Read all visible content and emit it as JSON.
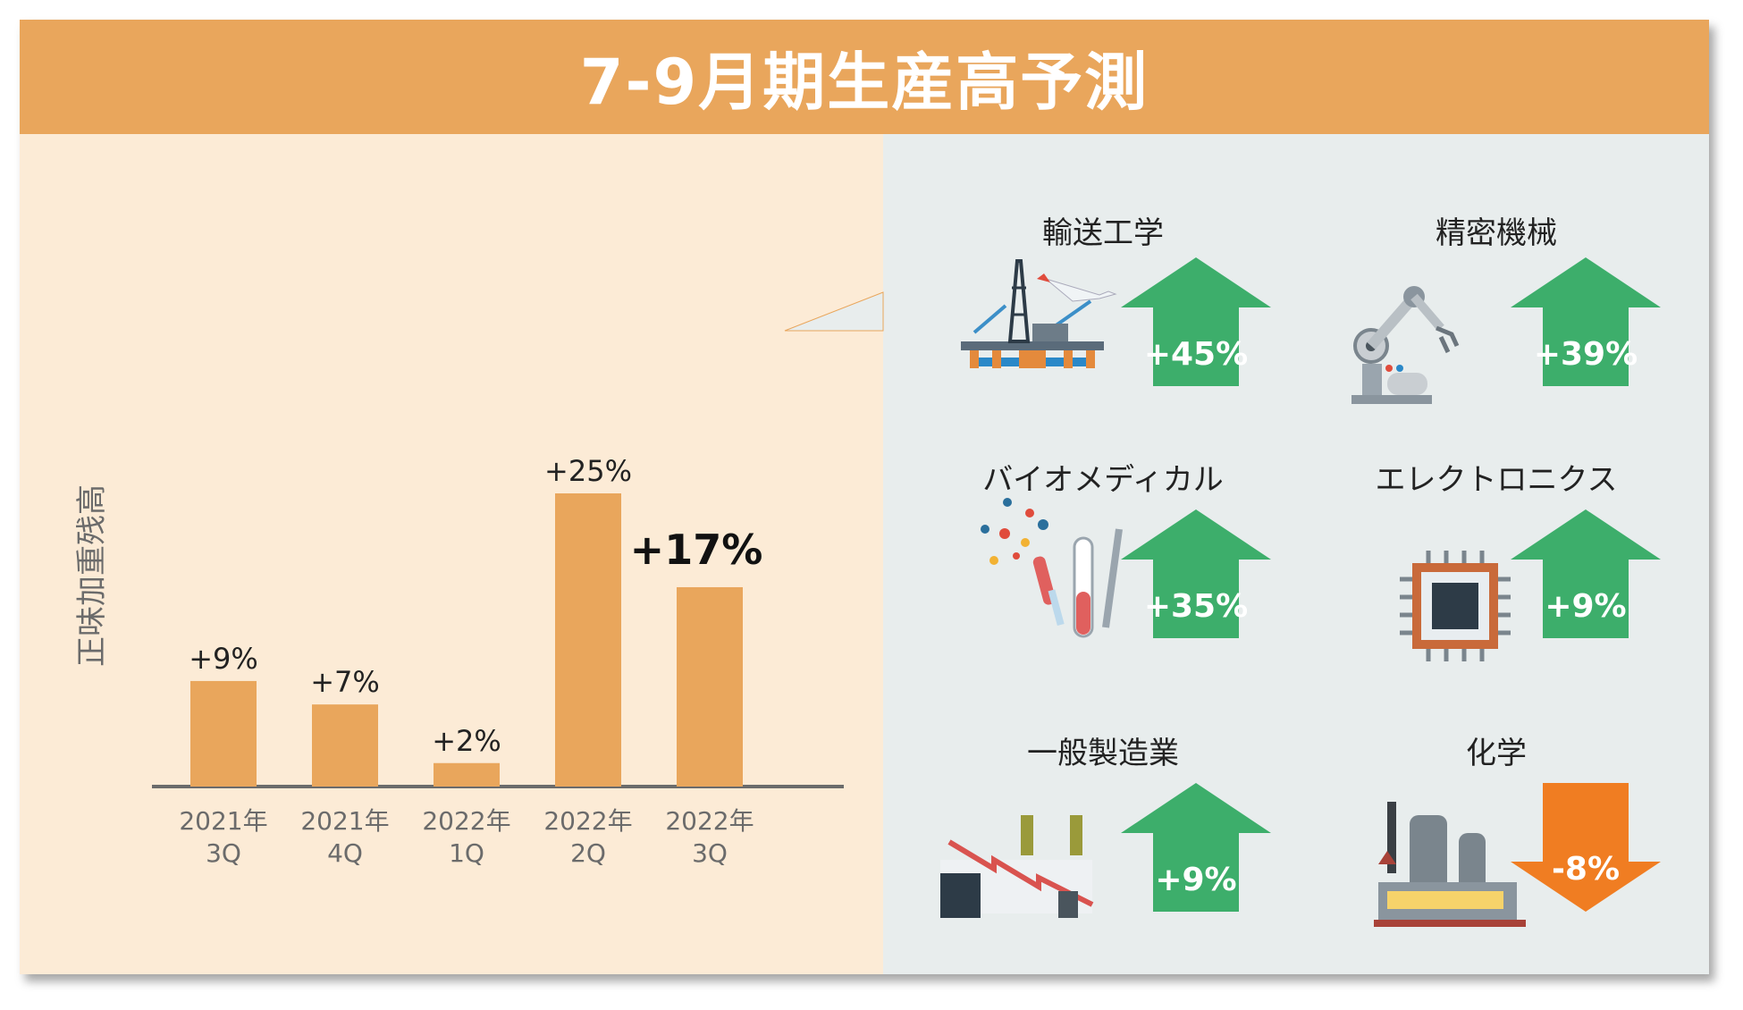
{
  "header": {
    "title": "7-9月期生産高予測"
  },
  "chart_data": {
    "type": "bar",
    "ylabel": "正味加重残高",
    "categories": [
      [
        "2021年",
        "3Q"
      ],
      [
        "2021年",
        "4Q"
      ],
      [
        "2022年",
        "1Q"
      ],
      [
        "2022年",
        "2Q"
      ],
      [
        "2022年",
        "3Q"
      ]
    ],
    "values": [
      9,
      7,
      2,
      25,
      17
    ],
    "value_labels": [
      "+9%",
      "+7%",
      "+2%",
      "+25%",
      "+17%"
    ],
    "highlight_index": 4,
    "bar_color": "#E9A65C",
    "ylim": [
      0,
      25
    ],
    "grid": false
  },
  "industries": [
    {
      "name": "輸送工学",
      "change": "+45%",
      "direction": "up",
      "icon": "oil-rig-airplane-icon"
    },
    {
      "name": "精密機械",
      "change": "+39%",
      "direction": "up",
      "icon": "robot-arm-icon"
    },
    {
      "name": "バイオメディカル",
      "change": "+35%",
      "direction": "up",
      "icon": "lab-tubes-syringe-icon"
    },
    {
      "name": "エレクトロニクス",
      "change": "+9%",
      "direction": "up",
      "icon": "microchip-icon"
    },
    {
      "name": "一般製造業",
      "change": "+9%",
      "direction": "up",
      "icon": "factory-icon"
    },
    {
      "name": "化学",
      "change": "-8%",
      "direction": "down",
      "icon": "chemical-plant-icon"
    }
  ],
  "colors": {
    "up": "#3DAE6B",
    "down": "#F07D22",
    "header": "#E9A65C"
  }
}
